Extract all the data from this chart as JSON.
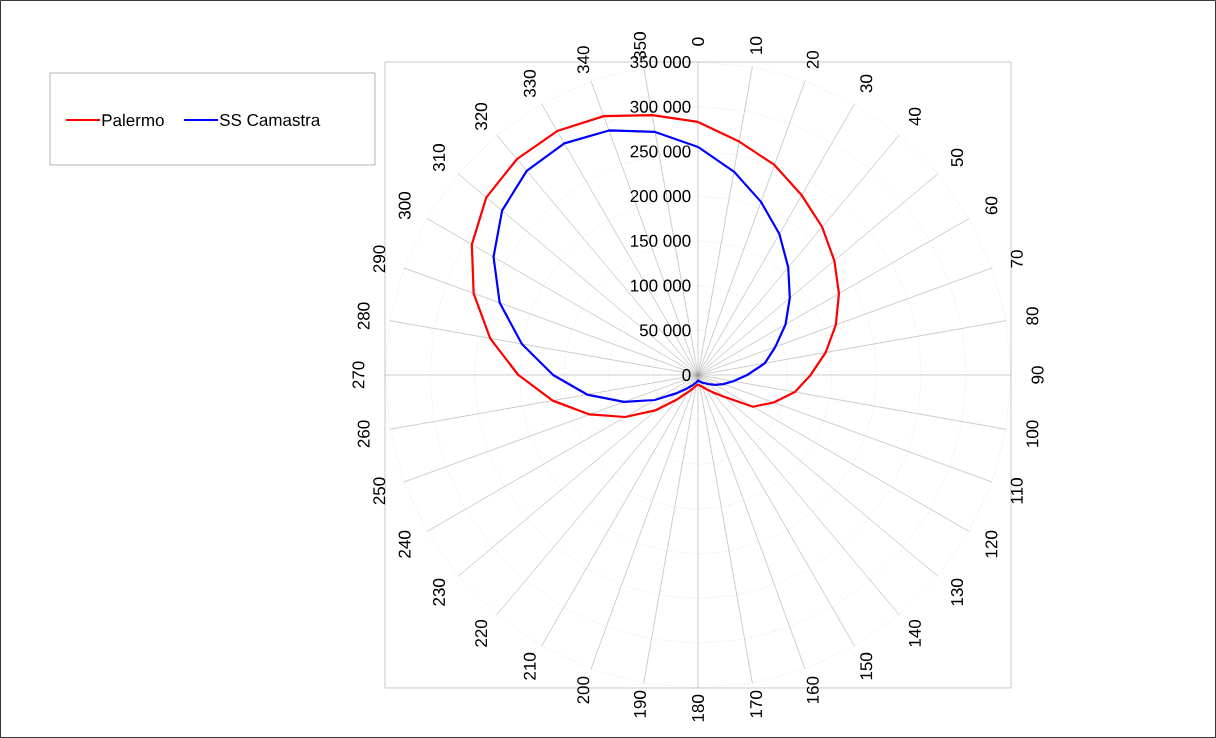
{
  "chart_data": {
    "type": "radar",
    "categories": [
      "0",
      "10",
      "20",
      "30",
      "40",
      "50",
      "60",
      "70",
      "80",
      "90",
      "100",
      "110",
      "120",
      "130",
      "140",
      "150",
      "160",
      "170",
      "180",
      "190",
      "200",
      "210",
      "220",
      "230",
      "240",
      "250",
      "260",
      "270",
      "280",
      "290",
      "300",
      "310",
      "320",
      "330",
      "340",
      "350"
    ],
    "series": [
      {
        "name": "Palermo",
        "color": "#ff0000",
        "values": [
          283000,
          265000,
          250000,
          232000,
          216000,
          199000,
          182000,
          164000,
          145000,
          126000,
          110000,
          90000,
          71000,
          38000,
          25000,
          18000,
          14000,
          12000,
          11000,
          12000,
          16000,
          22000,
          35000,
          61000,
          94000,
          129000,
          165000,
          201000,
          236000,
          267000,
          292000,
          309000,
          315000,
          315000,
          308000,
          295000
        ]
      },
      {
        "name": "SS Camastra",
        "color": "#0000ff",
        "values": [
          255000,
          231000,
          206000,
          182000,
          157000,
          134000,
          113000,
          92000,
          76000,
          55000,
          40000,
          30000,
          22000,
          16000,
          12000,
          10000,
          8000,
          7000,
          6000,
          8000,
          10000,
          14000,
          20000,
          32000,
          56000,
          88000,
          126000,
          162000,
          200000,
          236000,
          264000,
          286000,
          298000,
          299000,
          291000,
          276000
        ]
      }
    ],
    "ylim": [
      0,
      350000
    ],
    "yticks": [
      {
        "value": 0,
        "label": "0"
      },
      {
        "value": 50000,
        "label": "50 000"
      },
      {
        "value": 100000,
        "label": "100 000"
      },
      {
        "value": 150000,
        "label": "150 000"
      },
      {
        "value": 200000,
        "label": "200 000"
      },
      {
        "value": 250000,
        "label": "250 000"
      },
      {
        "value": 300000,
        "label": "300 000"
      },
      {
        "value": 350000,
        "label": "350 000"
      }
    ],
    "grid": true,
    "legend": "top left"
  }
}
